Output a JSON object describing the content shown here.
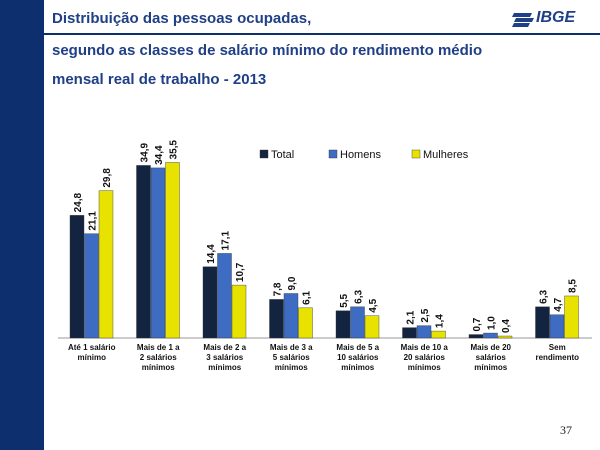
{
  "slide": {
    "title_line1": "Distribuição das pessoas ocupadas,",
    "title_line2": "segundo as classes de salário mínimo do rendimento médio",
    "title_line3": "mensal real de trabalho - 2013",
    "logo_text": "IBGE",
    "page_number": "37",
    "colors": {
      "sidebar": "#0d2f6e",
      "title": "#1f3f86"
    }
  },
  "chart_data": {
    "type": "bar",
    "categories": [
      [
        "Até 1 salário",
        "mínimo"
      ],
      [
        "Mais de   1 a",
        "2 salários",
        "mínimos"
      ],
      [
        "Mais de   2 a",
        "3 salários",
        "mínimos"
      ],
      [
        "Mais de   3 a",
        "5 salários",
        "mínimos"
      ],
      [
        "Mais de   5 a",
        "10 salários",
        "mínimos"
      ],
      [
        "Mais de 10 a",
        "20 salários",
        "mínimos"
      ],
      [
        "Mais de 20",
        "salários",
        "mínimos"
      ],
      [
        "Sem",
        "rendimento"
      ]
    ],
    "series": [
      {
        "name": "Total",
        "color": "#132440",
        "values": [
          24.8,
          34.9,
          14.4,
          7.8,
          5.5,
          2.1,
          0.7,
          6.3
        ],
        "labels": [
          "24,8",
          "34,9",
          "14,4",
          "7,8",
          "5,5",
          "2,1",
          "0,7",
          "6,3"
        ]
      },
      {
        "name": "Homens",
        "color": "#3d6cc2",
        "values": [
          21.1,
          34.4,
          17.1,
          9.0,
          6.3,
          2.5,
          1.0,
          4.7
        ],
        "labels": [
          "21,1",
          "34,4",
          "17,1",
          "9,0",
          "6,3",
          "2,5",
          "1,0",
          "4,7"
        ]
      },
      {
        "name": "Mulheres",
        "color": "#e8e200",
        "values": [
          29.8,
          35.5,
          10.7,
          6.1,
          4.5,
          1.4,
          0.4,
          8.5
        ],
        "labels": [
          "29,8",
          "35,5",
          "10,7",
          "6,1",
          "4,5",
          "1,4",
          "0,4",
          "8,5"
        ]
      }
    ],
    "ylim": [
      0,
      36
    ],
    "legend": "top-center",
    "grid": false
  }
}
